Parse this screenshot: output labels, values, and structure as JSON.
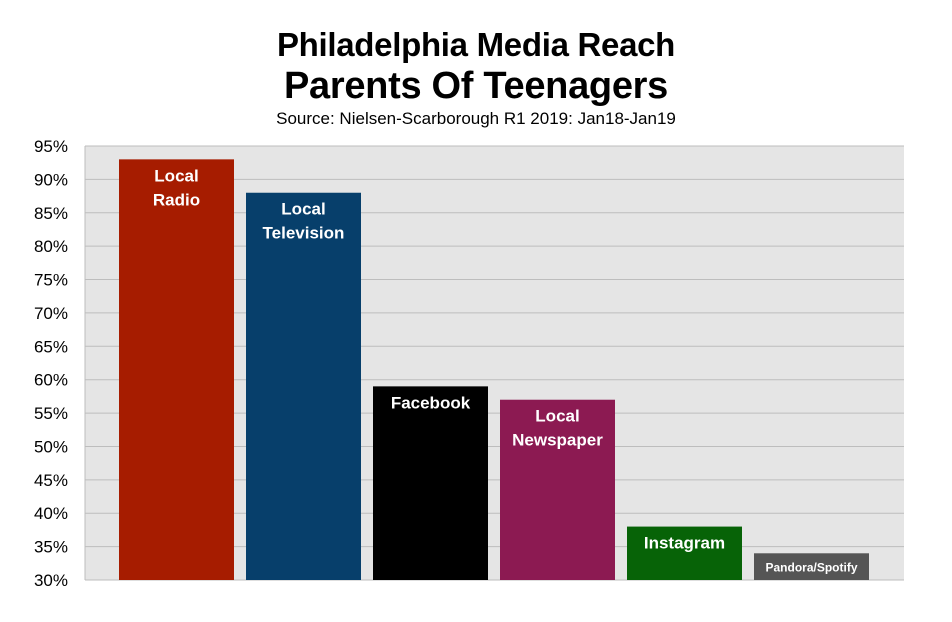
{
  "chart_data": {
    "type": "bar",
    "title": "Philadelphia Media Reach",
    "subtitle": "Parents Of Teenagers",
    "source": "Source: Nielsen-Scarborough R1 2019: Jan18-Jan19",
    "xlabel": "",
    "ylabel": "",
    "ylim": [
      30,
      95
    ],
    "y_ticks": [
      "30%",
      "35%",
      "40%",
      "45%",
      "50%",
      "55%",
      "60%",
      "65%",
      "70%",
      "75%",
      "80%",
      "85%",
      "90%",
      "95%"
    ],
    "grid": true,
    "plot_background": "#e5e5e5",
    "grid_color": "#bdbdbd",
    "categories": [
      "Local Radio",
      "Local Television",
      "Facebook",
      "Local Newspaper",
      "Instagram",
      "Pandora/Spotify"
    ],
    "bar_labels": [
      [
        "Local",
        "Radio"
      ],
      [
        "Local",
        "Television"
      ],
      [
        "Facebook"
      ],
      [
        "Local",
        "Newspaper"
      ],
      [
        "Instagram"
      ],
      [
        "Pandora/Spotify"
      ]
    ],
    "values": [
      93,
      88,
      59,
      57,
      38,
      34
    ],
    "colors": [
      "#a61c00",
      "#073f6b",
      "#000000",
      "#8c1a52",
      "#076307",
      "#555555"
    ]
  }
}
